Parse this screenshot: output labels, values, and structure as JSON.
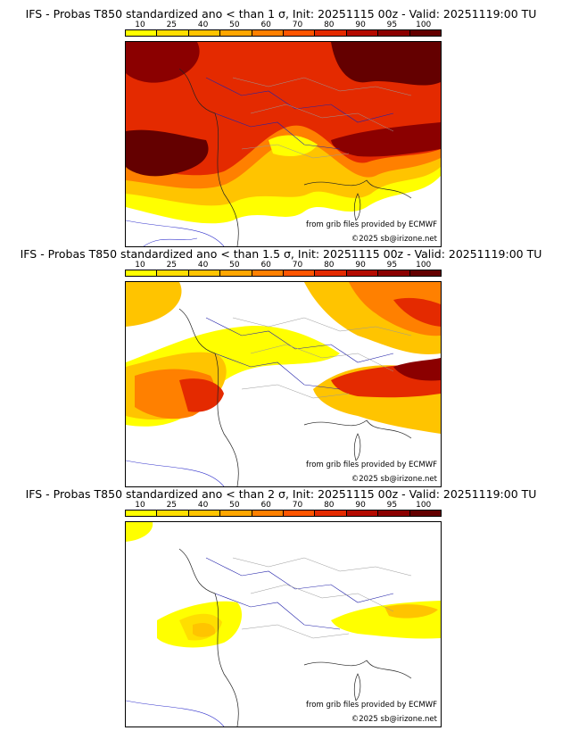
{
  "colorbar": {
    "ticks": [
      "10",
      "25",
      "40",
      "50",
      "60",
      "70",
      "80",
      "90",
      "95",
      "100"
    ],
    "colors": [
      "#ffff00",
      "#ffde00",
      "#ffc400",
      "#ffa600",
      "#ff8000",
      "#ff5500",
      "#e42a00",
      "#b40a00",
      "#8b0000",
      "#640000"
    ]
  },
  "panels": [
    {
      "title": "IFS - Probas T850  standardized ano < than 1 σ, Init: 20251115 00z - Valid: 20251119:00 TU",
      "credit_source": "from grib files provided by ECMWF",
      "credit_copy": "©2025 sb@irizone.net"
    },
    {
      "title": "IFS - Probas T850  standardized ano < than 1.5 σ, Init: 20251115 00z - Valid: 20251119:00 TU",
      "credit_source": "from grib files provided by ECMWF",
      "credit_copy": "©2025 sb@irizone.net"
    },
    {
      "title": "IFS - Probas T850  standardized ano < than 2 σ, Init: 20251115 00z - Valid: 20251119:00 TU",
      "credit_source": "from grib files provided by ECMWF",
      "credit_copy": "©2025 sb@irizone.net"
    }
  ]
}
